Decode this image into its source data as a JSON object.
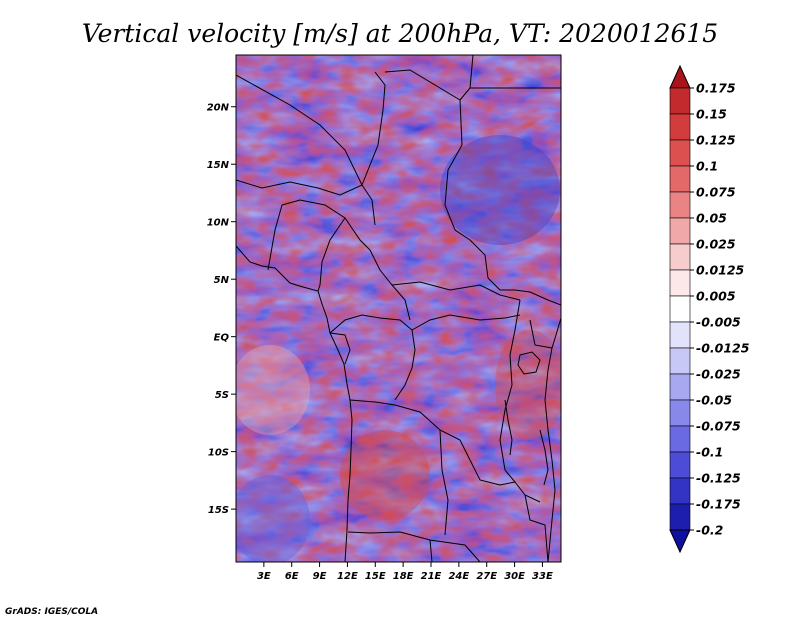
{
  "title": "Vertical velocity [m/s] at 200hPa, VT: 2020012615",
  "credit": "GrADS: IGES/COLA",
  "map": {
    "lat_range": [
      -19.6,
      24.5
    ],
    "lon_range": [
      0,
      35
    ],
    "lat_ticks": [
      {
        "value": 20,
        "label": "20N"
      },
      {
        "value": 15,
        "label": "15N"
      },
      {
        "value": 10,
        "label": "10N"
      },
      {
        "value": 5,
        "label": "5N"
      },
      {
        "value": 0,
        "label": "EQ"
      },
      {
        "value": -5,
        "label": "5S"
      },
      {
        "value": -10,
        "label": "10S"
      },
      {
        "value": -15,
        "label": "15S"
      }
    ],
    "lon_ticks": [
      {
        "value": 3,
        "label": "3E"
      },
      {
        "value": 6,
        "label": "6E"
      },
      {
        "value": 9,
        "label": "9E"
      },
      {
        "value": 12,
        "label": "12E"
      },
      {
        "value": 15,
        "label": "15E"
      },
      {
        "value": 18,
        "label": "18E"
      },
      {
        "value": 21,
        "label": "21E"
      },
      {
        "value": 24,
        "label": "24E"
      },
      {
        "value": 27,
        "label": "27E"
      },
      {
        "value": 30,
        "label": "30E"
      },
      {
        "value": 33,
        "label": "33E"
      }
    ]
  },
  "colorbar": {
    "labels": [
      "0.175",
      "0.15",
      "0.125",
      "0.1",
      "0.075",
      "0.05",
      "0.025",
      "0.0125",
      "0.005",
      "-0.005",
      "-0.0125",
      "-0.025",
      "-0.05",
      "-0.075",
      "-0.1",
      "-0.125",
      "-0.175",
      "-0.2"
    ],
    "colors": [
      "#a8141a",
      "#c22a2e",
      "#d33c3c",
      "#dc5050",
      "#e36868",
      "#ea8484",
      "#f1a8a8",
      "#f7cccc",
      "#fce8e8",
      "#ffffff",
      "#e2e2fb",
      "#c8c8f6",
      "#a8a8f0",
      "#8888ea",
      "#6a6ae2",
      "#4c4cd6",
      "#3333c4",
      "#1e1eae",
      "#1010a0"
    ]
  },
  "palette": {
    "low": "#3a3ad2",
    "mid": "#f6f6fb",
    "high": "#c03030",
    "background": "#ffffff",
    "border": "#000000"
  }
}
